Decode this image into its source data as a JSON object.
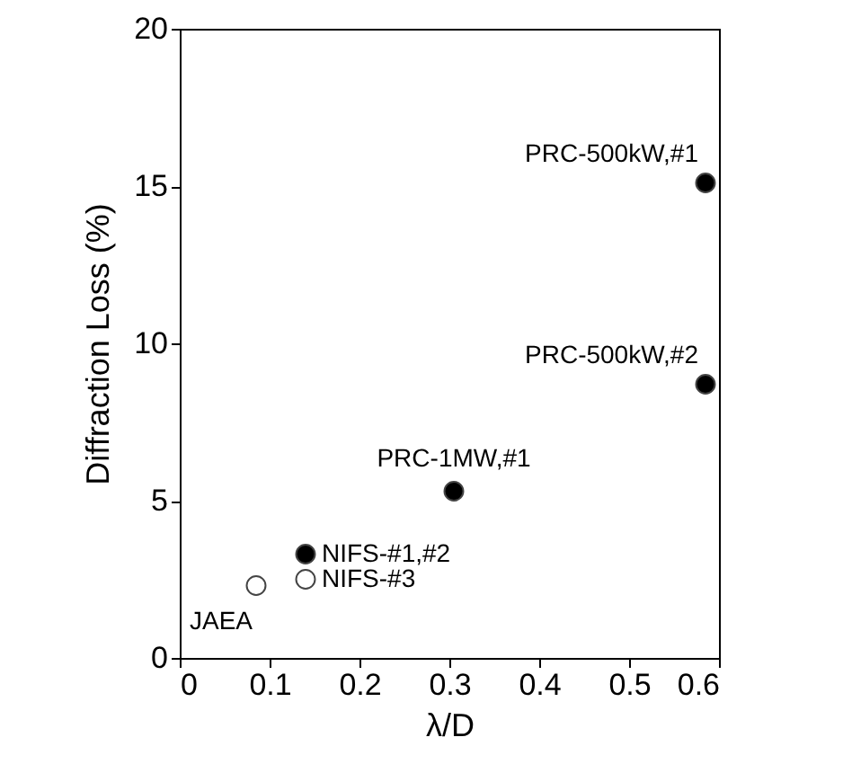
{
  "chart_data": {
    "type": "scatter",
    "xlabel": "λ/D",
    "ylabel": "Diffraction Loss (%)",
    "xlim": [
      0,
      0.6
    ],
    "xticks": [
      0,
      0.1,
      0.2,
      0.3,
      0.4,
      0.5,
      0.6
    ],
    "ylim": [
      0,
      20
    ],
    "yticks": [
      0,
      5,
      10,
      15,
      20
    ],
    "grid": false,
    "marker": "circle",
    "series": [
      {
        "color": "#000000",
        "x": [
          0.14,
          0.305,
          0.585,
          0.585
        ],
        "values": [
          3.3,
          5.3,
          8.7,
          15.1
        ]
      },
      {
        "color": "#ffffff",
        "x": [
          0.085,
          0.14
        ],
        "values": [
          2.3,
          2.5
        ]
      }
    ],
    "annotations": [
      {
        "text": "PRC-500kW,#1",
        "x": 0.585,
        "y": 15.1
      },
      {
        "text": "PRC-500kW,#2",
        "x": 0.585,
        "y": 8.7
      },
      {
        "text": "PRC-1MW,#1",
        "x": 0.305,
        "y": 5.3
      },
      {
        "text": "NIFS-#1,#2",
        "x": 0.14,
        "y": 3.3
      },
      {
        "text": "NIFS-#3",
        "x": 0.14,
        "y": 2.5
      },
      {
        "text": "JAEA",
        "x": 0.085,
        "y": 2.3
      }
    ]
  }
}
